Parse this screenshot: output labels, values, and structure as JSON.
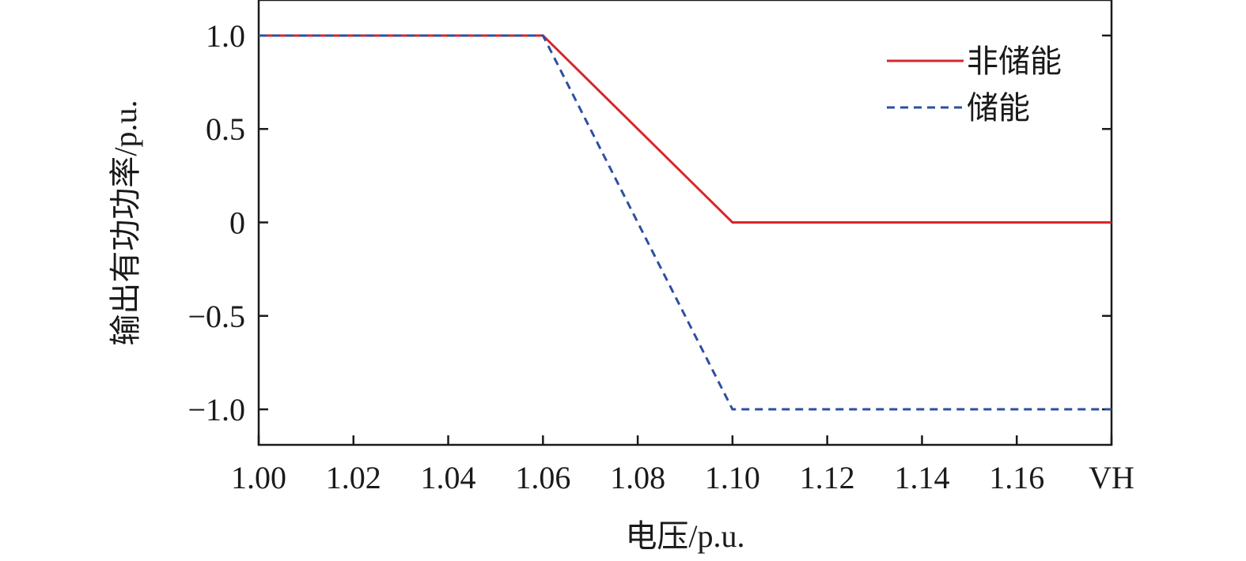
{
  "chart_data": {
    "type": "line",
    "title": "",
    "xlabel": "电压/p.u.",
    "ylabel": "输出有功功率/p.u.",
    "xlim": [
      1.0,
      1.18
    ],
    "ylim": [
      -1.19,
      1.19
    ],
    "grid": false,
    "legend_position": "top-right",
    "x_ticks": [
      {
        "value": 1.0,
        "label": "1.00"
      },
      {
        "value": 1.02,
        "label": "1.02"
      },
      {
        "value": 1.04,
        "label": "1.04"
      },
      {
        "value": 1.06,
        "label": "1.06"
      },
      {
        "value": 1.08,
        "label": "1.08"
      },
      {
        "value": 1.1,
        "label": "1.10"
      },
      {
        "value": 1.12,
        "label": "1.12"
      },
      {
        "value": 1.14,
        "label": "1.14"
      },
      {
        "value": 1.16,
        "label": "1.16"
      },
      {
        "value": 1.18,
        "label": "VH"
      }
    ],
    "y_ticks": [
      {
        "value": 1.0,
        "label": "1.0"
      },
      {
        "value": 0.5,
        "label": "0.5"
      },
      {
        "value": 0,
        "label": "0"
      },
      {
        "value": -0.5,
        "label": "−0.5"
      },
      {
        "value": -1.0,
        "label": "−1.0"
      }
    ],
    "series": [
      {
        "name": "非储能",
        "color": "#d7262b",
        "dash": "solid",
        "x": [
          1.0,
          1.06,
          1.1,
          1.18
        ],
        "y": [
          1.0,
          1.0,
          0.0,
          0.0
        ]
      },
      {
        "name": "储能",
        "color": "#2e4fa0",
        "dash": "dashed",
        "x": [
          1.0,
          1.06,
          1.1,
          1.18
        ],
        "y": [
          1.0,
          1.0,
          -1.0,
          -1.0
        ]
      }
    ]
  }
}
